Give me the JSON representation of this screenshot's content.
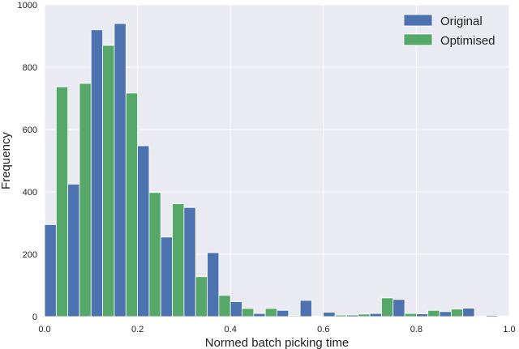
{
  "chart_data": {
    "type": "bar",
    "xlabel": "Normed batch picking time",
    "ylabel": "Frequency",
    "xlim": [
      0.0,
      1.0
    ],
    "ylim": [
      0,
      1000
    ],
    "xticks": [
      "0.0",
      "0.2",
      "0.4",
      "0.6",
      "0.8",
      "1.0"
    ],
    "yticks": [
      "0",
      "200",
      "400",
      "600",
      "800",
      "1000"
    ],
    "grid": true,
    "legend_position": "top-right",
    "bin_width": 0.05,
    "bin_starts": [
      0.0,
      0.05,
      0.1,
      0.15,
      0.2,
      0.25,
      0.3,
      0.35,
      0.4,
      0.45,
      0.5,
      0.55,
      0.6,
      0.65,
      0.7,
      0.75,
      0.8,
      0.85,
      0.9,
      0.95
    ],
    "series": [
      {
        "name": "Original",
        "color": "#4c72b0",
        "values": [
          295,
          425,
          920,
          940,
          548,
          255,
          350,
          205,
          48,
          10,
          20,
          52,
          14,
          5,
          10,
          55,
          9,
          16,
          27,
          4
        ]
      },
      {
        "name": "Optimised",
        "color": "#55a868",
        "values": [
          737,
          748,
          870,
          717,
          398,
          362,
          128,
          68,
          26,
          26,
          3,
          2,
          5,
          8,
          60,
          10,
          20,
          24,
          2,
          2
        ]
      }
    ]
  }
}
